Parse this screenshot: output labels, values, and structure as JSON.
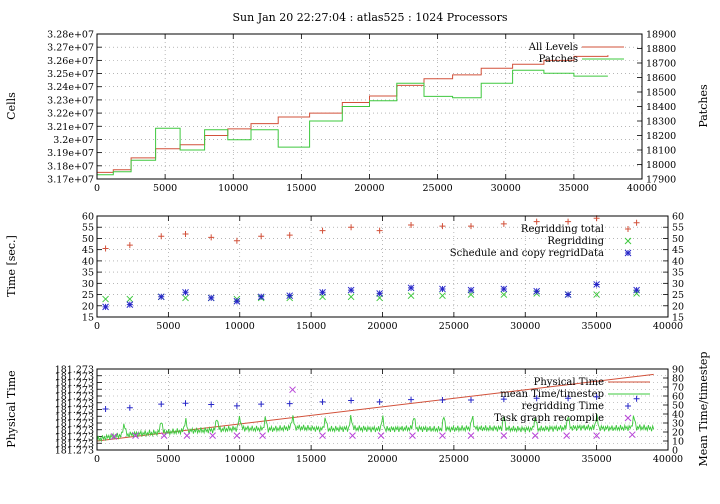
{
  "title": "Sun Jan 20 22:27:04 : atlas525 : 1024 Processors",
  "colors": {
    "red": "#d2513a",
    "green": "#3ec83e",
    "blue": "#2727c8",
    "purple": "#b845d8",
    "frame": "#000000",
    "grid": "#8c8c8c"
  },
  "chart_data": [
    {
      "type": "line",
      "ylabel": "Cells",
      "y2label": "Patches",
      "xlim": [
        0,
        40000
      ],
      "ylim": [
        31700000,
        32800000
      ],
      "y2lim": [
        17900,
        18900
      ],
      "xticks": [
        "0",
        "5000",
        "10000",
        "15000",
        "20000",
        "25000",
        "30000",
        "35000",
        "40000"
      ],
      "yticks": [
        "3.17e+07",
        "3.18e+07",
        "3.19e+07",
        "3.2e+07",
        "3.21e+07",
        "3.22e+07",
        "3.23e+07",
        "3.24e+07",
        "3.25e+07",
        "3.26e+07",
        "3.27e+07",
        "3.28e+07"
      ],
      "y2ticks": [
        "17900",
        "18000",
        "18100",
        "18200",
        "18300",
        "18400",
        "18500",
        "18600",
        "18700",
        "18800",
        "18900"
      ],
      "grid": true,
      "legend_position": "top-right",
      "series": [
        {
          "name": "All Levels",
          "axis": "left",
          "color": "red",
          "style": "step",
          "x": [
            0,
            1200,
            2500,
            4300,
            6100,
            7900,
            9600,
            11300,
            13300,
            15600,
            18000,
            20000,
            22000,
            24000,
            26100,
            28200,
            30500,
            32800,
            35000,
            37500
          ],
          "y": [
            31750000,
            31770000,
            31860000,
            31930000,
            31960000,
            32030000,
            32080000,
            32120000,
            32170000,
            32200000,
            32280000,
            32330000,
            32410000,
            32460000,
            32490000,
            32540000,
            32570000,
            32600000,
            32630000,
            32640000
          ]
        },
        {
          "name": "Patches",
          "axis": "right",
          "color": "green",
          "style": "step",
          "x": [
            0,
            1200,
            2500,
            4300,
            6100,
            7900,
            9600,
            11300,
            13300,
            15600,
            18000,
            20000,
            22000,
            24000,
            26100,
            28200,
            30500,
            32800,
            35000,
            37500
          ],
          "y": [
            17930,
            17950,
            18030,
            18250,
            18100,
            18240,
            18170,
            18240,
            18120,
            18300,
            18400,
            18440,
            18560,
            18470,
            18460,
            18560,
            18650,
            18630,
            18610,
            18610
          ]
        }
      ]
    },
    {
      "type": "scatter",
      "ylabel": "Time [sec.]",
      "xlim": [
        0,
        40000
      ],
      "ylim": [
        15,
        60
      ],
      "xticks": [
        "0",
        "5000",
        "10000",
        "15000",
        "20000",
        "25000",
        "30000",
        "35000",
        "40000"
      ],
      "yticks": [
        "15",
        "20",
        "25",
        "30",
        "35",
        "40",
        "45",
        "50",
        "55",
        "60"
      ],
      "y2ticks": [
        "15",
        "20",
        "25",
        "30",
        "35",
        "40",
        "45",
        "50",
        "55",
        "60"
      ],
      "grid": true,
      "legend_position": "top-right",
      "series": [
        {
          "name": "Regridding total",
          "marker": "plus",
          "color": "red",
          "x": [
            600,
            2300,
            4500,
            6200,
            8000,
            9800,
            11500,
            13500,
            15800,
            17800,
            19800,
            22000,
            24200,
            26200,
            28500,
            30800,
            33000,
            35000,
            37800
          ],
          "y": [
            45.5,
            47,
            51,
            52,
            50.5,
            49,
            51,
            51.5,
            53.5,
            55,
            53.5,
            56,
            55.5,
            55.5,
            56.5,
            57.5,
            57.5,
            59,
            57
          ]
        },
        {
          "name": "Regridding",
          "marker": "cross",
          "color": "green",
          "x": [
            600,
            2300,
            4500,
            6200,
            8000,
            9800,
            11500,
            13500,
            15800,
            17800,
            19800,
            22000,
            24200,
            26200,
            28500,
            30800,
            33000,
            35000,
            37800
          ],
          "y": [
            23,
            23,
            24,
            23.5,
            23.5,
            23,
            23.5,
            23.5,
            24,
            24,
            23.5,
            24.5,
            24.5,
            25,
            25,
            25.5,
            25,
            25,
            25.5
          ]
        },
        {
          "name": "Schedule and copy regridData",
          "marker": "star",
          "color": "blue",
          "x": [
            600,
            2300,
            4500,
            6200,
            8000,
            9800,
            11500,
            13500,
            15800,
            17800,
            19800,
            22000,
            24200,
            26200,
            28500,
            30800,
            33000,
            35000,
            37800
          ],
          "y": [
            19.5,
            20.5,
            24,
            26,
            23.5,
            22,
            24,
            24.5,
            26,
            27,
            25.5,
            28,
            27.5,
            27,
            27.5,
            26.5,
            25,
            29.5,
            27
          ]
        }
      ]
    },
    {
      "type": "line",
      "ylabel": "Physical Time",
      "y2label": "Mean Time/timestep",
      "xlim": [
        0,
        40000
      ],
      "ylim": [
        0,
        90
      ],
      "xticks": [
        "0",
        "5000",
        "10000",
        "15000",
        "20000",
        "25000",
        "30000",
        "35000",
        "40000"
      ],
      "yticks": [
        "181.273",
        "181.273",
        "181.273",
        "181.273",
        "181.273",
        "181.273",
        "181.273",
        "181.273",
        "181.273",
        "181.273",
        "181.273",
        "181.273",
        "181.273"
      ],
      "y2ticks": [
        "0",
        "10",
        "20",
        "30",
        "40",
        "50",
        "60",
        "70",
        "80",
        "90"
      ],
      "grid": true,
      "legend_position": "top-right",
      "series": [
        {
          "name": "Physical Time",
          "color": "red",
          "style": "line",
          "x": [
            0,
            39000
          ],
          "y": [
            10,
            84
          ]
        },
        {
          "name": "mean Time/timestep",
          "color": "green",
          "style": "noisy-line",
          "x": [
            0,
            1000,
            2000,
            4000,
            6000,
            8000,
            10000,
            12000,
            14000,
            16000,
            18000,
            20000,
            22000,
            24000,
            26000,
            28000,
            30000,
            32000,
            34000,
            36000,
            38000,
            39000
          ],
          "y": [
            12,
            15,
            17,
            19,
            21,
            22,
            24,
            23,
            25,
            23,
            24,
            23,
            24,
            23,
            24,
            24,
            23,
            24,
            25,
            24,
            25,
            24
          ]
        },
        {
          "name": "regridding Time",
          "marker": "plus",
          "color": "blue",
          "x": [
            600,
            2300,
            4500,
            6200,
            8000,
            9800,
            11500,
            13500,
            15800,
            17800,
            19800,
            22000,
            24200,
            26200,
            28500,
            30800,
            33000,
            35000,
            37800
          ],
          "y": [
            45.5,
            47,
            51,
            52,
            50.5,
            49,
            51,
            51.5,
            53.5,
            55,
            53.5,
            56,
            55.5,
            55.5,
            56.5,
            57.5,
            57.5,
            59,
            57
          ]
        },
        {
          "name": "Task graph recompile",
          "marker": "cross",
          "color": "purple",
          "x": [
            1200,
            2700,
            4700,
            6300,
            8100,
            9800,
            11600,
            13700,
            15800,
            17900,
            19900,
            22100,
            24200,
            26200,
            28500,
            30700,
            32900,
            35000,
            37500
          ],
          "y": [
            15,
            16,
            16,
            16,
            16,
            16,
            16,
            67,
            16,
            16,
            16,
            16,
            16,
            16,
            16,
            16,
            16,
            16,
            17
          ]
        }
      ]
    }
  ]
}
